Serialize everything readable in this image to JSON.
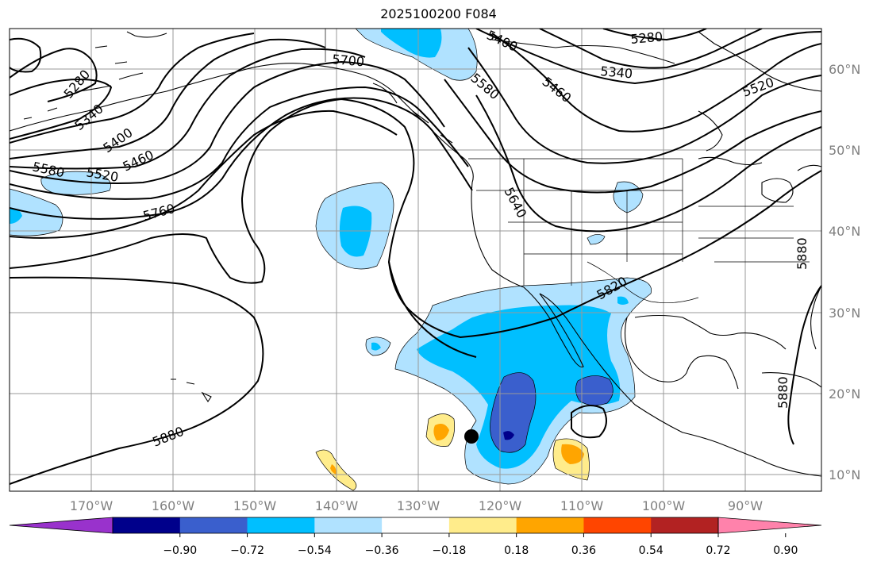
{
  "title": "2025100200 F084",
  "colors": {
    "plot_bg": "#ffffff",
    "grid": "#999999",
    "contour": "#000000",
    "coast": "#000000",
    "axis_label": "#808080"
  },
  "chart_data": {
    "type": "heatmap",
    "title": "2025100200 F084",
    "x_range": [
      -180,
      -80
    ],
    "y_range": [
      8,
      65
    ],
    "lat_labels": [
      "60°N",
      "50°N",
      "40°N",
      "30°N",
      "20°N",
      "10°N"
    ],
    "lon_labels": [
      "170°W",
      "160°W",
      "150°W",
      "140°W",
      "130°W",
      "120°W",
      "110°W",
      "100°W",
      "90°W"
    ],
    "contour_labels": [
      "5280",
      "5340",
      "5400",
      "5460",
      "5520",
      "5580",
      "5760",
      "5880",
      "5700",
      "5400",
      "5580",
      "5460",
      "5340",
      "5280",
      "5520",
      "5640",
      "5820",
      "5880",
      "5880"
    ],
    "colorbar": {
      "ticks": [
        "−0.90",
        "−0.72",
        "−0.54",
        "−0.36",
        "−0.18",
        "0.18",
        "0.36",
        "0.54",
        "0.72",
        "0.90"
      ],
      "colors": [
        "#9932CC",
        "#00008B",
        "#3A5FCD",
        "#00BFFF",
        "#B0E2FF",
        "#FFFFFF",
        "#FFEC8B",
        "#FFA500",
        "#FF4500",
        "#B22222",
        "#FF82AB"
      ]
    },
    "marker": {
      "lon": -123,
      "lat": 14.7
    }
  }
}
